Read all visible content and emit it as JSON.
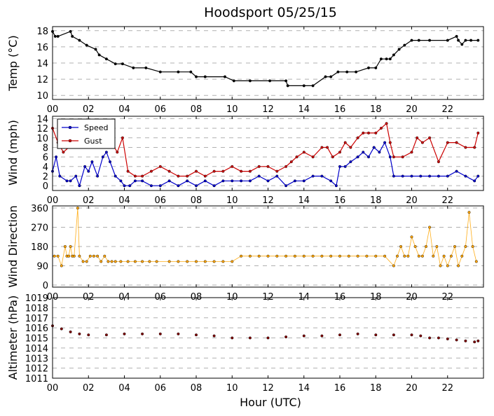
{
  "chart_data": [
    {
      "type": "line",
      "title": "Hoodsport 05/25/15",
      "ylabel": "Temp (°C)",
      "xlabel": "",
      "xlim": [
        0,
        24
      ],
      "ylim": [
        9.5,
        18.5
      ],
      "x_ticks": [
        "00",
        "02",
        "04",
        "06",
        "08",
        "10",
        "12",
        "14",
        "16",
        "18",
        "20",
        "22"
      ],
      "y_ticks": [
        10,
        12,
        14,
        16,
        18
      ],
      "grid": "horizontal-dashed",
      "series": [
        {
          "color": "#000000",
          "x": [
            0,
            0.15,
            0.3,
            1.0,
            1.1,
            1.5,
            1.9,
            2.4,
            2.6,
            3.0,
            3.5,
            3.9,
            4.5,
            5.2,
            6.0,
            7.0,
            7.7,
            8.0,
            8.5,
            9.6,
            10.1,
            11.0,
            12.1,
            13.0,
            13.1,
            14.0,
            14.5,
            15.2,
            15.5,
            15.9,
            16.4,
            16.9,
            17.6,
            18.0,
            18.3,
            18.6,
            18.8,
            19.0,
            19.3,
            19.6,
            20.0,
            20.4,
            21.0,
            22.0,
            22.5,
            22.6,
            22.8,
            23.0,
            23.3,
            23.7
          ],
          "y": [
            17.9,
            17.3,
            17.3,
            17.9,
            17.3,
            16.8,
            16.2,
            15.7,
            15.0,
            14.5,
            13.9,
            13.9,
            13.4,
            13.4,
            12.9,
            12.9,
            12.9,
            12.3,
            12.3,
            12.3,
            11.8,
            11.8,
            11.8,
            11.8,
            11.2,
            11.2,
            11.2,
            12.3,
            12.3,
            12.9,
            12.9,
            12.9,
            13.4,
            13.4,
            14.5,
            14.5,
            14.5,
            15.0,
            15.7,
            16.2,
            16.8,
            16.8,
            16.8,
            16.8,
            17.3,
            16.8,
            16.3,
            16.8,
            16.8,
            16.8
          ]
        }
      ]
    },
    {
      "type": "line",
      "ylabel": "Wind (mph)",
      "xlim": [
        0,
        24
      ],
      "ylim": [
        -1,
        14.5
      ],
      "x_ticks": [
        "00",
        "02",
        "04",
        "06",
        "08",
        "10",
        "12",
        "14",
        "16",
        "18",
        "20",
        "22"
      ],
      "y_ticks": [
        0,
        2,
        4,
        6,
        8,
        10,
        12,
        14
      ],
      "grid": "horizontal-dashed",
      "legend_position": "top-left",
      "series": [
        {
          "name": "Speed",
          "color": "#0000cc",
          "x": [
            0,
            0.2,
            0.4,
            0.8,
            1.0,
            1.3,
            1.5,
            1.8,
            2.0,
            2.2,
            2.5,
            2.8,
            3.0,
            3.2,
            3.5,
            3.8,
            4.0,
            4.3,
            4.6,
            5.0,
            5.5,
            6.0,
            6.5,
            7.0,
            7.5,
            8.0,
            8.5,
            9.0,
            9.5,
            10.0,
            10.5,
            11.0,
            11.5,
            12.0,
            12.5,
            13.0,
            13.5,
            14.0,
            14.5,
            15.0,
            15.5,
            15.8,
            16.0,
            16.3,
            16.6,
            17.0,
            17.3,
            17.6,
            17.9,
            18.2,
            18.5,
            18.8,
            19.0,
            19.5,
            20.0,
            20.5,
            21.0,
            21.5,
            22.0,
            22.5,
            23.0,
            23.5,
            23.7
          ],
          "y": [
            3,
            6,
            2,
            1,
            1,
            2,
            0,
            4,
            3,
            5,
            2,
            6,
            7,
            5,
            2,
            1,
            0,
            0,
            1,
            1,
            0,
            0,
            1,
            0,
            1,
            0,
            1,
            0,
            1,
            1,
            1,
            1,
            2,
            1,
            2,
            0,
            1,
            1,
            2,
            2,
            1,
            0,
            4,
            4,
            5,
            6,
            7,
            6,
            8,
            7,
            9,
            6,
            2,
            2,
            2,
            2,
            2,
            2,
            2,
            3,
            2,
            1,
            2
          ]
        },
        {
          "name": "Gust",
          "color": "#cc0000",
          "x": [
            0,
            0.3,
            0.6,
            0.9,
            1.2,
            1.5,
            1.8,
            2.1,
            2.4,
            2.7,
            3.0,
            3.3,
            3.6,
            3.9,
            4.2,
            4.6,
            5.0,
            5.5,
            6.0,
            6.5,
            7.0,
            7.5,
            8.0,
            8.5,
            9.0,
            9.5,
            10.0,
            10.5,
            11.0,
            11.5,
            12.0,
            12.5,
            13.0,
            13.3,
            13.6,
            14.0,
            14.5,
            15.0,
            15.3,
            15.6,
            16.0,
            16.3,
            16.6,
            17.0,
            17.3,
            17.6,
            18.0,
            18.3,
            18.6,
            18.8,
            19.0,
            19.5,
            20.0,
            20.3,
            20.6,
            21.0,
            21.5,
            22.0,
            22.5,
            23.0,
            23.5,
            23.7
          ],
          "y": [
            12,
            9,
            7,
            8,
            10,
            8,
            8,
            9,
            11,
            10,
            8,
            9,
            7,
            10,
            3,
            2,
            2,
            3,
            4,
            3,
            2,
            2,
            3,
            2,
            3,
            3,
            4,
            3,
            3,
            4,
            4,
            3,
            4,
            5,
            6,
            7,
            6,
            8,
            8,
            6,
            7,
            9,
            8,
            10,
            11,
            11,
            11,
            12,
            13,
            9,
            6,
            6,
            7,
            10,
            9,
            10,
            5,
            9,
            9,
            8,
            8,
            11
          ]
        }
      ]
    },
    {
      "type": "scatter",
      "ylabel": "Wind Direction",
      "xlim": [
        0,
        24
      ],
      "ylim": [
        -10,
        370
      ],
      "x_ticks": [
        "00",
        "02",
        "04",
        "06",
        "08",
        "10",
        "12",
        "14",
        "16",
        "18",
        "20",
        "22"
      ],
      "y_ticks": [
        0,
        90,
        180,
        270,
        360
      ],
      "grid": "horizontal-dashed",
      "series": [
        {
          "color": "#ffa500",
          "x": [
            0.1,
            0.3,
            0.5,
            0.7,
            0.8,
            0.9,
            1.0,
            1.1,
            1.2,
            1.4,
            1.5,
            1.7,
            1.9,
            2.1,
            2.3,
            2.5,
            2.7,
            2.9,
            3.1,
            3.3,
            3.5,
            3.8,
            4.2,
            4.6,
            5.0,
            5.4,
            5.8,
            6.5,
            7.0,
            7.5,
            8.0,
            8.5,
            9.0,
            9.5,
            10.0,
            10.5,
            11.0,
            11.5,
            12.0,
            12.5,
            13.0,
            13.5,
            14.0,
            14.5,
            15.0,
            15.5,
            16.0,
            16.5,
            17.0,
            17.5,
            18.0,
            18.5,
            19.0,
            19.2,
            19.4,
            19.6,
            19.8,
            20.0,
            20.2,
            20.4,
            20.6,
            20.8,
            21.0,
            21.2,
            21.4,
            21.6,
            21.8,
            22.0,
            22.2,
            22.4,
            22.6,
            22.8,
            23.0,
            23.2,
            23.4,
            23.6
          ],
          "y": [
            135,
            135,
            90,
            180,
            135,
            135,
            180,
            135,
            135,
            360,
            135,
            110,
            110,
            135,
            135,
            135,
            110,
            135,
            110,
            110,
            110,
            110,
            110,
            110,
            110,
            110,
            110,
            110,
            110,
            110,
            110,
            110,
            110,
            110,
            110,
            135,
            135,
            135,
            135,
            135,
            135,
            135,
            135,
            135,
            135,
            135,
            135,
            135,
            135,
            135,
            135,
            135,
            90,
            135,
            180,
            135,
            135,
            225,
            180,
            135,
            135,
            180,
            270,
            135,
            180,
            90,
            135,
            90,
            135,
            180,
            90,
            135,
            180,
            340,
            180,
            110
          ]
        }
      ]
    },
    {
      "type": "scatter",
      "ylabel": "Altimeter (hPa)",
      "xlabel": "Hour (UTC)",
      "xlim": [
        0,
        24
      ],
      "ylim": [
        1011,
        1019
      ],
      "x_ticks": [
        "00",
        "02",
        "04",
        "06",
        "08",
        "10",
        "12",
        "14",
        "16",
        "18",
        "20",
        "22"
      ],
      "y_ticks": [
        1011,
        1012,
        1013,
        1014,
        1015,
        1016,
        1017,
        1018,
        1019
      ],
      "grid": "horizontal-dashed",
      "series": [
        {
          "color": "#800000",
          "x": [
            0,
            0.5,
            1.0,
            1.5,
            2.0,
            3.0,
            4.0,
            5.0,
            6.0,
            7.0,
            8.0,
            9.0,
            10.0,
            11.0,
            12.0,
            13.0,
            14.0,
            15.0,
            16.0,
            17.0,
            18.0,
            19.0,
            20.0,
            20.5,
            21.0,
            21.5,
            22.0,
            22.5,
            23.0,
            23.5,
            23.7
          ],
          "y": [
            1016.2,
            1015.9,
            1015.6,
            1015.4,
            1015.3,
            1015.3,
            1015.4,
            1015.4,
            1015.4,
            1015.4,
            1015.3,
            1015.2,
            1015.0,
            1015.0,
            1015.0,
            1015.1,
            1015.2,
            1015.2,
            1015.3,
            1015.4,
            1015.3,
            1015.3,
            1015.3,
            1015.2,
            1015.0,
            1015.0,
            1014.9,
            1014.8,
            1014.7,
            1014.6,
            1014.7
          ]
        }
      ]
    }
  ]
}
